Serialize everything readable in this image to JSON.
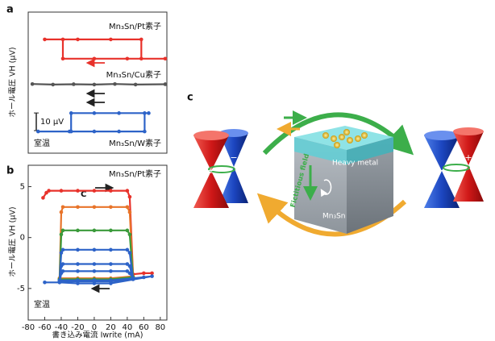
{
  "chart_data": [
    {
      "type": "line",
      "label": "a",
      "ylabel": "ホール電圧 VH (μV)",
      "xlim": [
        -80,
        88
      ],
      "ylim": [
        0,
        80
      ],
      "series": [
        {
          "color": "#e8322b",
          "x": [
            -60,
            -20,
            20,
            57,
            57,
            86,
            40,
            0,
            -38,
            -38
          ],
          "values": [
            64.5,
            64.5,
            64.5,
            64.5,
            53.6,
            53.6,
            53.6,
            53.6,
            53.6,
            64.5
          ]
        },
        {
          "color": "#555555",
          "x": [
            -75,
            -50,
            -25,
            0,
            25,
            50,
            86
          ],
          "values": [
            39.2,
            38.9,
            39.1,
            38.9,
            39.2,
            38.9,
            39.1
          ]
        },
        {
          "color": "#2d63c8",
          "x": [
            -68,
            -30,
            0,
            30,
            61,
            61,
            66,
            30,
            0,
            -28,
            -28
          ],
          "values": [
            12.3,
            12.3,
            12.3,
            12.3,
            12.3,
            22.7,
            22.7,
            22.7,
            22.7,
            22.7,
            12.3
          ]
        }
      ],
      "annotations": [
        "Mn₃Sn/Pt素子",
        "Mn₃Sn/Cu素子",
        "Mn₃Sn/W素子"
      ],
      "scale_bar": {
        "value": 10,
        "label": "10 μV"
      },
      "note": "室温"
    },
    {
      "type": "line",
      "label": "b",
      "ylabel": "ホール電圧 VH (μV)",
      "xlabel": "書き込み電流 Iwrite (mA)",
      "xlim": [
        -80,
        88
      ],
      "ylim": [
        -8.1,
        7.1
      ],
      "xticks": [
        -80,
        -60,
        -40,
        -20,
        0,
        20,
        40,
        60,
        80
      ],
      "yticks": [
        -5,
        0,
        5
      ],
      "series": [
        {
          "color": "#e8322b",
          "x": [
            -62,
            -58,
            -55,
            -40,
            -20,
            0,
            20,
            40,
            43,
            47,
            60,
            70
          ],
          "values": [
            3.9,
            4.4,
            4.6,
            4.6,
            4.6,
            4.6,
            4.6,
            4.6,
            4.0,
            -3.6,
            -3.5,
            -3.5
          ]
        },
        {
          "color": "#e8742a",
          "x": [
            -42,
            -40,
            -38,
            -20,
            0,
            20,
            40,
            43,
            47,
            20,
            0,
            -20,
            -42
          ],
          "values": [
            -4.0,
            2.5,
            3.0,
            3.0,
            3.0,
            3.0,
            3.0,
            2.5,
            -3.8,
            -4.0,
            -4.0,
            -4.0,
            -4.0
          ]
        },
        {
          "color": "#3a9a3a",
          "x": [
            -42,
            -40,
            -38,
            -20,
            0,
            20,
            40,
            43,
            47,
            20,
            0,
            -20,
            -42
          ],
          "values": [
            -4.1,
            0.3,
            0.7,
            0.7,
            0.7,
            0.7,
            0.7,
            0.3,
            -3.9,
            -4.1,
            -4.1,
            -4.1,
            -4.1
          ]
        },
        {
          "color": "#2d63c8",
          "x": [
            -42,
            -40,
            -38,
            -20,
            0,
            20,
            40,
            43,
            47,
            20,
            0,
            -20,
            -42
          ],
          "values": [
            -4.2,
            -1.5,
            -1.2,
            -1.2,
            -1.2,
            -1.2,
            -1.2,
            -1.5,
            -4.0,
            -4.2,
            -4.2,
            -4.2,
            -4.2
          ]
        },
        {
          "color": "#2d63c8",
          "x": [
            -42,
            -40,
            -38,
            -20,
            0,
            20,
            40,
            43,
            47,
            20,
            0,
            -20,
            -42
          ],
          "values": [
            -4.3,
            -2.8,
            -2.6,
            -2.6,
            -2.6,
            -2.6,
            -2.6,
            -2.8,
            -4.1,
            -4.3,
            -4.3,
            -4.3,
            -4.3
          ]
        },
        {
          "color": "#2d63c8",
          "x": [
            -60,
            -42,
            -40,
            -38,
            -20,
            0,
            20,
            40,
            43,
            47,
            60,
            70,
            20,
            0,
            -20,
            -42
          ],
          "values": [
            -4.4,
            -4.4,
            -3.5,
            -3.3,
            -3.3,
            -3.3,
            -3.3,
            -3.3,
            -3.5,
            -4.0,
            -3.9,
            -3.8,
            -4.5,
            -4.5,
            -4.5,
            -4.4
          ]
        }
      ],
      "annotations": [
        "Mn₃Sn/Pt素子",
        "C"
      ],
      "note": "室温"
    }
  ],
  "diagram": {
    "label": "c",
    "texts": [
      "Heavy metal",
      "Mn₃Sn",
      "Fictitious field"
    ],
    "signs": [
      "+",
      "−"
    ]
  }
}
